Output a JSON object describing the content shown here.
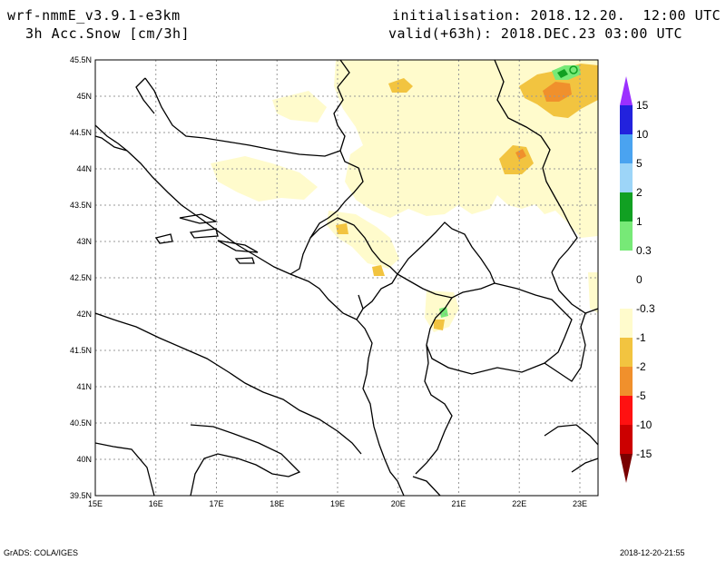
{
  "header": {
    "model": "wrf-nmmE_v3.9.1-e3km",
    "field": "3h Acc.Snow [cm/3h]",
    "init": "initialisation: 2018.12.20.  12:00 UTC",
    "valid": "valid(+63h): 2018.DEC.23 03:00 UTC"
  },
  "axes": {
    "lat_labels": [
      "39.5N",
      "40N",
      "40.5N",
      "41N",
      "41.5N",
      "42N",
      "42.5N",
      "43N",
      "43.5N",
      "44N",
      "44.5N",
      "45N",
      "45.5N"
    ],
    "lon_labels": [
      "15E",
      "16E",
      "17E",
      "18E",
      "19E",
      "20E",
      "21E",
      "22E",
      "23E"
    ],
    "lat_range": [
      39.5,
      45.5
    ],
    "lon_range": [
      15.0,
      23.3
    ]
  },
  "colorbar": {
    "labels": [
      "15",
      "10",
      "5",
      "2",
      "1",
      "0.3",
      "0",
      "-0.3",
      "-1",
      "-2",
      "-5",
      "-10",
      "-15"
    ],
    "colors": [
      "#2222dd",
      "#4aa3f0",
      "#9dd5f8",
      "#11a022",
      "#77e977",
      "#ffffff",
      "#ffffff",
      "#fffbcc",
      "#f2c440",
      "#f0902c",
      "#ff1111",
      "#cc0000",
      "#990000"
    ],
    "top_arrow_color": "#9b30ff",
    "bottom_arrow_color": "#7a0000"
  },
  "footer": {
    "left": "GrADS: COLA/IGES",
    "right": "2018-12-20-21:55"
  },
  "colors": {
    "light_snow": "#fffbcc",
    "moderate_snow": "#f2c440",
    "heavier_snow": "#f0902c",
    "green_snow": "#77e977",
    "dark_green_snow": "#11a022"
  }
}
